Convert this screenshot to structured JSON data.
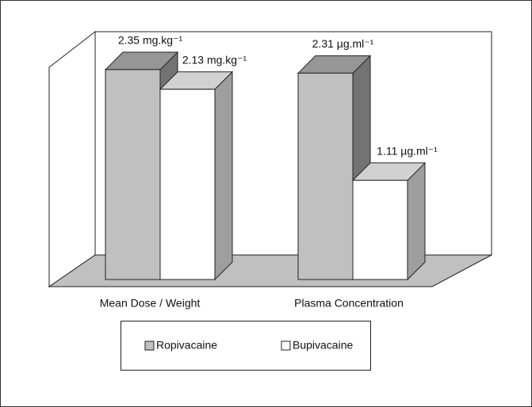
{
  "chart_data": {
    "type": "bar3d",
    "categories": [
      "Mean Dose / Weight",
      "Plasma Concentration"
    ],
    "series": [
      {
        "name": "Ropivacaine",
        "color": "#c0c0c0",
        "values": [
          2.35,
          2.31
        ],
        "value_labels": [
          "2.35 mg.kg⁻¹",
          "2.31 µg.ml⁻¹"
        ]
      },
      {
        "name": "Bupivacaine",
        "color": "#ffffff",
        "values": [
          2.13,
          1.11
        ],
        "value_labels": [
          "2.13 mg.kg⁻¹",
          "1.11 µg.ml⁻¹"
        ]
      }
    ],
    "ylim": [
      0,
      2.5
    ],
    "legend": "bottom"
  }
}
